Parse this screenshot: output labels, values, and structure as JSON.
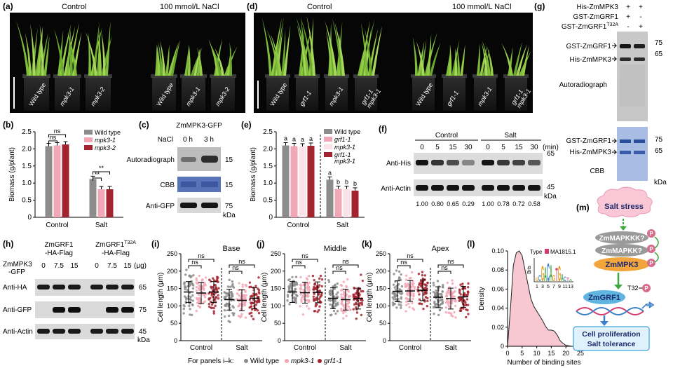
{
  "panels": {
    "a": {
      "letter": "(a)",
      "headers": [
        "Control",
        "100 mmol/L NaCl"
      ],
      "pot_labels_left": [
        "Wild type",
        "mpk3-1",
        "mpk3-2"
      ],
      "pot_labels_right": [
        "Wild type",
        "mpk3-1",
        "mpk3-2"
      ]
    },
    "d": {
      "letter": "(d)",
      "headers": [
        "Control",
        "100 mmol/L NaCl"
      ],
      "pot_labels_left": [
        "Wild type",
        "grf1-1",
        "mpk3-1",
        "grf1-1 mpk3-1"
      ],
      "pot_labels_right": [
        "Wild type",
        "grf1-1",
        "mpk3-1",
        "grf1-1 mpk3-1"
      ]
    },
    "g": {
      "letter": "(g)",
      "rows": [
        {
          "label": "His-ZmMPK3",
          "lanes": [
            "+",
            "+"
          ]
        },
        {
          "label": "GST-ZmGRF1",
          "lanes": [
            "+",
            "-"
          ]
        },
        {
          "label": "GST-ZmGRF1",
          "sup": "T32A",
          "lanes": [
            "-",
            "+"
          ]
        }
      ],
      "autorad": {
        "bands": [
          "GST-ZmGRF1",
          "His-ZmMPK3"
        ],
        "markers": [
          "75",
          "65"
        ],
        "caption": "Autoradiograph"
      },
      "cbb": {
        "bands": [
          "GST-ZmGRF1",
          "His-ZmMPK3"
        ],
        "markers": [
          "75",
          "65"
        ],
        "caption": "CBB",
        "unit": "kDa"
      }
    },
    "b": {
      "letter": "(b)",
      "chart_data": {
        "type": "bar",
        "ylabel": "Biomass (g/plant)",
        "ylim": [
          0,
          2.5
        ],
        "yticks": [
          "0",
          "0.5",
          "1.0",
          "1.5",
          "2.0",
          "2.5"
        ],
        "categories": [
          "Control",
          "Salt"
        ],
        "series": [
          {
            "name": "Wild type",
            "color": "#8c8c8c",
            "values": [
              2.08,
              1.12
            ]
          },
          {
            "name": "mpk3-1",
            "color": "#f2a7b6",
            "values": [
              2.1,
              0.82
            ]
          },
          {
            "name": "mpk3-2",
            "color": "#a3232e",
            "values": [
              2.13,
              0.82
            ]
          }
        ],
        "annotations": [
          "ns",
          "ns",
          "**",
          "**"
        ],
        "legend": "top-right"
      }
    },
    "c": {
      "letter": "(c)",
      "title": "ZmMPK3-GFP",
      "nacl_label": "NaCl",
      "times": [
        "0 h",
        "3 h"
      ],
      "rows": [
        "Autoradiograph",
        "CBB",
        "Anti-GFP"
      ],
      "markers": [
        "15",
        "15",
        "75"
      ],
      "unit": "kDa"
    },
    "e": {
      "letter": "(e)",
      "chart_data": {
        "type": "bar",
        "ylabel": "Biomass (g/plant)",
        "ylim": [
          0,
          2.5
        ],
        "yticks": [
          "0",
          "0.5",
          "1.0",
          "1.5",
          "2.0",
          "2.5"
        ],
        "categories": [
          "Control",
          "Salt"
        ],
        "series": [
          {
            "name": "Wild type",
            "color": "#8c8c8c",
            "values": [
              2.1,
              1.1
            ]
          },
          {
            "name": "grf1-1",
            "color": "#f2a7b6",
            "values": [
              2.08,
              0.83
            ]
          },
          {
            "name": "mpk3-1",
            "color": "#fbe2e8",
            "values": [
              2.07,
              0.83
            ]
          },
          {
            "name": "grf1-1 mpk3-1",
            "color": "#a3232e",
            "values": [
              2.09,
              0.78
            ]
          }
        ],
        "letters": [
          [
            "a",
            "a",
            "a",
            "a"
          ],
          [
            "a",
            "b",
            "b",
            "b"
          ]
        ],
        "legend": "top-right"
      }
    },
    "f": {
      "letter": "(f)",
      "groups": [
        "Control",
        "Salt"
      ],
      "times": [
        "0",
        "5",
        "15",
        "30",
        "0",
        "5",
        "15",
        "30"
      ],
      "time_unit": "(min)",
      "rows": [
        "Anti-His",
        "Anti-Actin"
      ],
      "markers": [
        "65",
        "45"
      ],
      "unit": "kDa",
      "values": [
        "1.00",
        "0.80",
        "0.65",
        "0.29",
        "1.00",
        "0.78",
        "0.72",
        "0.58"
      ]
    },
    "h": {
      "letter": "(h)",
      "constructs": [
        {
          "line1": "ZmGRF1",
          "line2": "-HA-Flag"
        },
        {
          "line1": "ZmGRF1",
          "sup": "T32A",
          "line2": "-HA-Flag"
        }
      ],
      "dose_label_1": "ZmMPK3",
      "dose_label_2": "-GFP",
      "doses": [
        "0",
        "7.5",
        "15",
        "0",
        "7.5",
        "15"
      ],
      "dose_unit": "(μg)",
      "rows": [
        "Anti-HA",
        "Anti-GFP",
        "Anti-Actin"
      ],
      "markers": [
        "65",
        "75",
        "45"
      ],
      "unit": "kDa"
    },
    "i": {
      "letter": "(i)",
      "chart_data": {
        "type": "scatter",
        "title": "Base",
        "ylabel": "Cell length (μm)",
        "ylim": [
          0,
          250
        ],
        "yticks": [
          "0",
          "50",
          "100",
          "150",
          "200",
          "250"
        ],
        "categories": [
          "Control",
          "Salt"
        ],
        "series": [
          {
            "name": "Wild type",
            "color": "#8c8c8c",
            "means": [
              140,
              118
            ]
          },
          {
            "name": "mpk3-1",
            "color": "#f2a7b6",
            "means": [
              137,
              116
            ]
          },
          {
            "name": "grf1-1",
            "color": "#a3232e",
            "means": [
              140,
              122
            ]
          }
        ],
        "annotations": [
          "ns",
          "ns",
          "ns",
          "ns"
        ]
      }
    },
    "j": {
      "letter": "(j)",
      "chart_data": {
        "type": "scatter",
        "title": "Middle",
        "ylabel": "Cell length (μm)",
        "ylim": [
          0,
          250
        ],
        "yticks": [
          "0",
          "50",
          "100",
          "150",
          "200",
          "250"
        ],
        "categories": [
          "Control",
          "Salt"
        ],
        "series": [
          {
            "name": "Wild type",
            "color": "#8c8c8c",
            "means": [
              140,
              122
            ]
          },
          {
            "name": "mpk3-1",
            "color": "#f2a7b6",
            "means": [
              138,
              118
            ]
          },
          {
            "name": "grf1-1",
            "color": "#a3232e",
            "means": [
              139,
              121
            ]
          }
        ],
        "annotations": [
          "ns",
          "ns",
          "ns",
          "ns"
        ]
      }
    },
    "k": {
      "letter": "(k)",
      "chart_data": {
        "type": "scatter",
        "title": "Apex",
        "ylabel": "Cell length (μm)",
        "ylim": [
          0,
          250
        ],
        "yticks": [
          "0",
          "50",
          "100",
          "150",
          "200",
          "250"
        ],
        "categories": [
          "Control",
          "Salt"
        ],
        "series": [
          {
            "name": "Wild type",
            "color": "#8c8c8c",
            "means": [
              142,
              125
            ]
          },
          {
            "name": "mpk3-1",
            "color": "#f2a7b6",
            "means": [
              143,
              121
            ]
          },
          {
            "name": "grf1-1",
            "color": "#a3232e",
            "means": [
              145,
              126
            ]
          }
        ],
        "annotations": [
          "ns",
          "ns",
          "ns",
          "ns"
        ]
      }
    },
    "l": {
      "letter": "(l)",
      "chart_data": {
        "type": "area",
        "xlabel": "Number of binding sites",
        "ylabel": "Density",
        "xlim": [
          0,
          25
        ],
        "ylim": [
          0,
          0.1
        ],
        "xticks": [
          "0",
          "5",
          "10",
          "15",
          "20",
          "25"
        ],
        "yticks": [
          "0",
          "0.02",
          "0.04",
          "0.06",
          "0.08",
          "0.10"
        ],
        "x": [
          0,
          1,
          2,
          3,
          4,
          5,
          6,
          7,
          8,
          9,
          10,
          11,
          12,
          13,
          14,
          15,
          16,
          17,
          18,
          19,
          20,
          21,
          22
        ],
        "y": [
          0.0,
          0.04,
          0.085,
          0.098,
          0.1,
          0.095,
          0.08,
          0.065,
          0.05,
          0.042,
          0.037,
          0.032,
          0.027,
          0.021,
          0.017,
          0.017,
          0.016,
          0.012,
          0.006,
          0.003,
          0.001,
          0.0005,
          0.0
        ],
        "color": "#f7c8d2"
      },
      "inset": {
        "type_label": "Type",
        "motif": "MA1815.1",
        "ylabel": "Bits",
        "xticks": [
          "1",
          "3",
          "5",
          "7",
          "9",
          "11",
          "13"
        ]
      }
    },
    "m": {
      "letter": "(m)",
      "salt": "Salt stress",
      "kkk": "ZmMAPKKK?",
      "kk": "ZmMAPKK?",
      "mpk3": "ZmMPK3",
      "grf1": "ZmGRF1",
      "site": "T32",
      "p": "P",
      "outcome_1": "Cell proliferation",
      "outcome_2": "Salt tolerance"
    }
  },
  "footer": {
    "prefix": "For panels i–k:",
    "items": [
      {
        "name": "Wild type",
        "color": "#8c8c8c"
      },
      {
        "name": "mpk3-1",
        "color": "#f2a7b6"
      },
      {
        "name": "grf1-1",
        "color": "#a3232e"
      }
    ]
  }
}
